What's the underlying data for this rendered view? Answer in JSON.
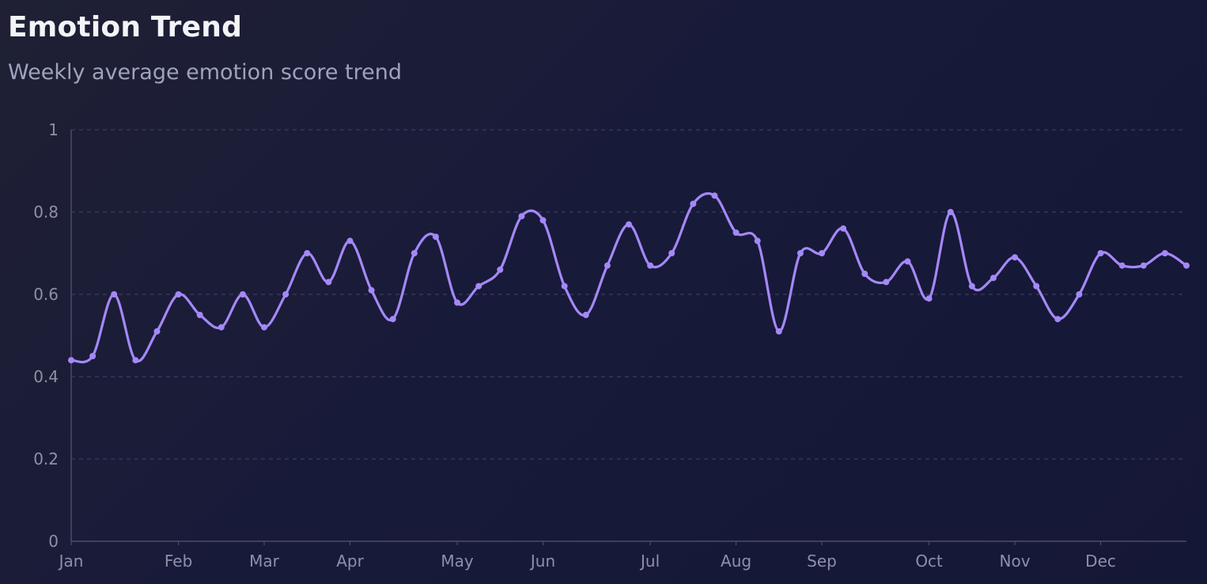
{
  "header": {
    "title": "Emotion Trend",
    "subtitle": "Weekly average emotion score trend"
  },
  "colors": {
    "line": "#a488f8",
    "grid": "#3a3d5c",
    "axis": "#4a4d68",
    "tick_text": "#8c91a8"
  },
  "chart_data": {
    "type": "line",
    "title": "Emotion Trend",
    "subtitle": "Weekly average emotion score trend",
    "xlabel": "",
    "ylabel": "",
    "ylim": [
      0,
      1
    ],
    "y_ticks": [
      "0",
      "0.2",
      "0.4",
      "0.6",
      "0.8",
      "1"
    ],
    "y_tick_values": [
      0,
      0.2,
      0.4,
      0.6,
      0.8,
      1
    ],
    "x_ticks": [
      "Jan",
      "Feb",
      "Mar",
      "Apr",
      "May",
      "Jun",
      "Jul",
      "Aug",
      "Sep",
      "Oct",
      "Nov",
      "Dec"
    ],
    "x_tick_weeks": [
      0,
      5,
      9,
      13,
      18,
      22,
      27,
      31,
      35,
      40,
      44,
      48
    ],
    "grid": "horizontal dashed",
    "legend": "none",
    "series": [
      {
        "values": [
          0.44,
          0.45,
          0.6,
          0.44,
          0.51,
          0.6,
          0.55,
          0.52,
          0.6,
          0.52,
          0.6,
          0.7,
          0.63,
          0.73,
          0.61,
          0.54,
          0.7,
          0.74,
          0.58,
          0.62,
          0.66,
          0.79,
          0.78,
          0.62,
          0.55,
          0.67,
          0.77,
          0.67,
          0.7,
          0.82,
          0.84,
          0.75,
          0.73,
          0.51,
          0.7,
          0.7,
          0.76,
          0.65,
          0.63,
          0.68,
          0.59,
          0.8,
          0.62,
          0.64,
          0.69,
          0.62,
          0.54,
          0.6,
          0.7,
          0.67,
          0.67,
          0.7,
          0.67
        ]
      }
    ]
  }
}
